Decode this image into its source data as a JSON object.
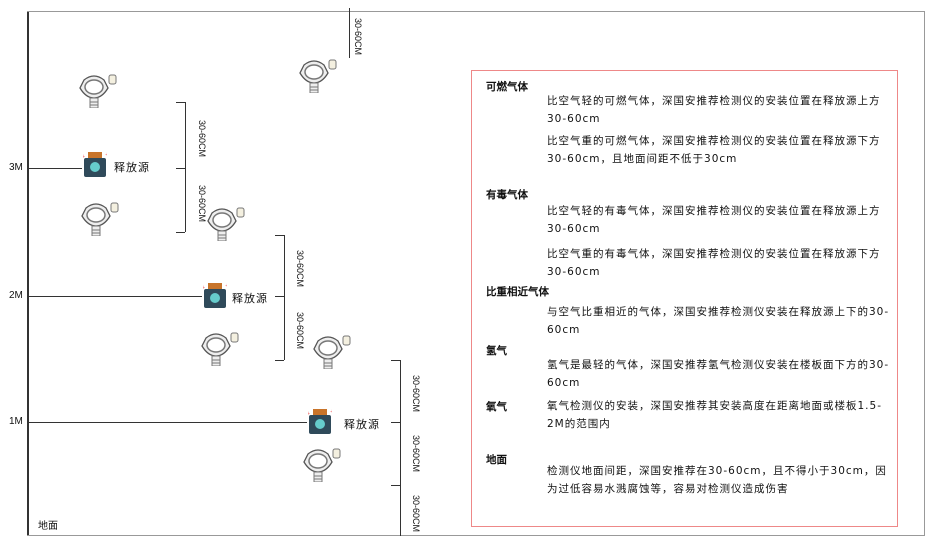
{
  "levels": {
    "m3": "3M",
    "m2": "2M",
    "m1": "1M",
    "ground": "地面"
  },
  "dimension_label": "30-60CM",
  "release_source_label": "释放源",
  "colors": {
    "frame": "#333333",
    "box_border": "#e88888",
    "source_body": "#2f4a5a",
    "source_cap": "#c8742a"
  },
  "notes": {
    "flammable": {
      "title": "可燃气体",
      "light": "比空气轻的可燃气体，深国安推荐检测仪的安装位置在释放源上方30-60cm",
      "heavy": "比空气重的可燃气体，深国安推荐检测仪的安装位置在释放源下方30-60cm，且地面间距不低于30cm"
    },
    "toxic": {
      "title": "有毒气体",
      "light": "比空气轻的有毒气体，深国安推荐检测仪的安装位置在释放源上方30-60cm",
      "heavy": "比空气重的有毒气体，深国安推荐检测仪的安装位置在释放源下方30-60cm"
    },
    "similar": {
      "title": "比重相近气体",
      "text": "与空气比重相近的气体，深国安推荐检测仪安装在释放源上下的30-60cm"
    },
    "hydrogen": {
      "title": "氢气",
      "text": "氢气是最轻的气体，深国安推荐氢气检测仪安装在楼板面下方的30-60cm"
    },
    "oxygen": {
      "title": "氧气",
      "text": "氧气检测仪的安装，深国安推荐其安装高度在距离地面或楼板1.5-2M的范围内"
    },
    "ground": {
      "title": "地面",
      "text": "检测仪地面间距，深国安推荐在30-60cm，且不得小于30cm，因为过低容易水溅腐蚀等，容易对检测仪造成伤害"
    }
  }
}
